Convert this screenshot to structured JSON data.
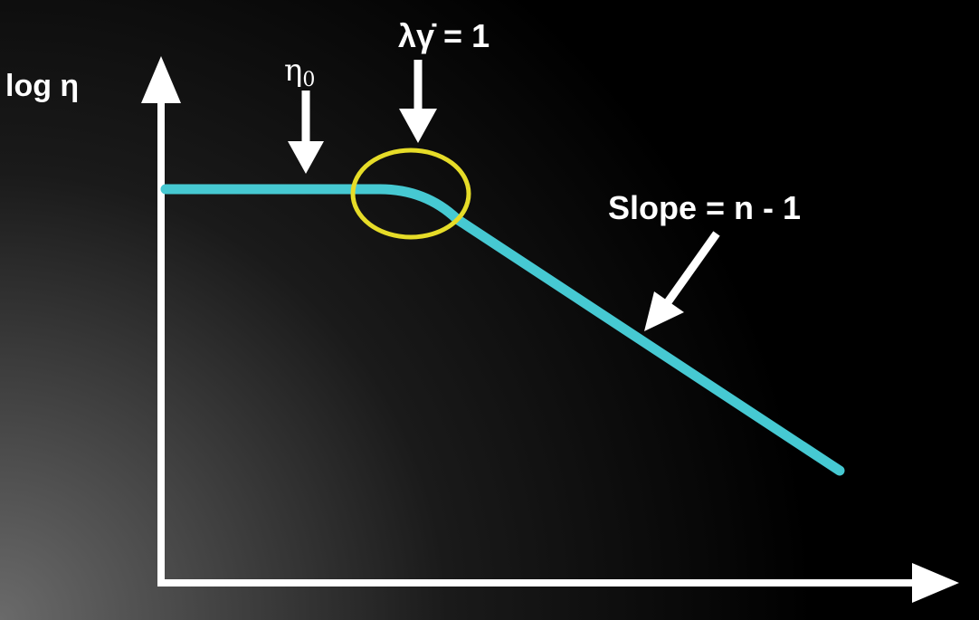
{
  "diagram": {
    "y_axis_label": "log η",
    "zero_shear_label": "η",
    "zero_shear_subscript": "0",
    "transition_label": "λγ̇ = 1",
    "slope_label": "Slope = n - 1"
  },
  "colors": {
    "background_light": "#6a6a6a",
    "background_dark": "#000000",
    "axis": "#ffffff",
    "curve": "#46c9d2",
    "highlight_ellipse": "#e6dc28",
    "text": "#ffffff"
  }
}
